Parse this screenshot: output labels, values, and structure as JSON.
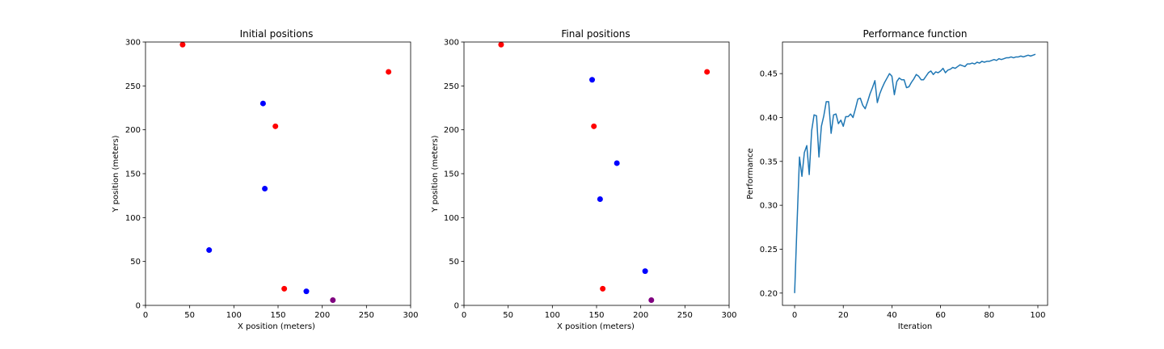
{
  "chart_data": [
    {
      "type": "scatter",
      "title": "Initial positions",
      "xlabel": "X position (meters)",
      "ylabel": "Y position (meters)",
      "xlim": [
        0,
        300
      ],
      "ylim": [
        0,
        300
      ],
      "xticks": [
        0,
        50,
        100,
        150,
        200,
        250,
        300
      ],
      "yticks": [
        0,
        50,
        100,
        150,
        200,
        250,
        300
      ],
      "grid": false,
      "points": [
        {
          "x": 42,
          "y": 297,
          "color": "#ff0000"
        },
        {
          "x": 275,
          "y": 266,
          "color": "#ff0000"
        },
        {
          "x": 133,
          "y": 230,
          "color": "#0000ff"
        },
        {
          "x": 147,
          "y": 204,
          "color": "#ff0000"
        },
        {
          "x": 135,
          "y": 133,
          "color": "#0000ff"
        },
        {
          "x": 72,
          "y": 63,
          "color": "#0000ff"
        },
        {
          "x": 157,
          "y": 19,
          "color": "#ff0000"
        },
        {
          "x": 182,
          "y": 16,
          "color": "#0000ff"
        },
        {
          "x": 212,
          "y": 6,
          "color": "#800080"
        }
      ]
    },
    {
      "type": "scatter",
      "title": "Final positions",
      "xlabel": "X position (meters)",
      "ylabel": "Y position (meters)",
      "xlim": [
        0,
        300
      ],
      "ylim": [
        0,
        300
      ],
      "xticks": [
        0,
        50,
        100,
        150,
        200,
        250,
        300
      ],
      "yticks": [
        0,
        50,
        100,
        150,
        200,
        250,
        300
      ],
      "grid": false,
      "points": [
        {
          "x": 42,
          "y": 297,
          "color": "#ff0000"
        },
        {
          "x": 275,
          "y": 266,
          "color": "#ff0000"
        },
        {
          "x": 145,
          "y": 257,
          "color": "#0000ff"
        },
        {
          "x": 147,
          "y": 204,
          "color": "#ff0000"
        },
        {
          "x": 173,
          "y": 162,
          "color": "#0000ff"
        },
        {
          "x": 154,
          "y": 121,
          "color": "#0000ff"
        },
        {
          "x": 205,
          "y": 39,
          "color": "#0000ff"
        },
        {
          "x": 157,
          "y": 19,
          "color": "#ff0000"
        },
        {
          "x": 212,
          "y": 6,
          "color": "#800080"
        }
      ]
    },
    {
      "type": "line",
      "title": "Performance function",
      "xlabel": "Iteration",
      "ylabel": "Performance",
      "xlim": [
        -5,
        104
      ],
      "ylim": [
        0.186,
        0.486
      ],
      "xticks": [
        0,
        20,
        40,
        60,
        80,
        100
      ],
      "yticks": [
        0.2,
        0.25,
        0.3,
        0.35,
        0.4,
        0.45
      ],
      "ytick_labels": [
        "0.20",
        "0.25",
        "0.30",
        "0.35",
        "0.40",
        "0.45"
      ],
      "grid": false,
      "color": "#1f77b4",
      "x": [
        0,
        1,
        2,
        3,
        4,
        5,
        6,
        7,
        8,
        9,
        10,
        11,
        12,
        13,
        14,
        15,
        16,
        17,
        18,
        19,
        20,
        21,
        22,
        23,
        24,
        25,
        26,
        27,
        28,
        29,
        30,
        31,
        32,
        33,
        34,
        35,
        36,
        37,
        38,
        39,
        40,
        41,
        42,
        43,
        44,
        45,
        46,
        47,
        48,
        49,
        50,
        51,
        52,
        53,
        54,
        55,
        56,
        57,
        58,
        59,
        60,
        61,
        62,
        63,
        64,
        65,
        66,
        67,
        68,
        69,
        70,
        71,
        72,
        73,
        74,
        75,
        76,
        77,
        78,
        79,
        80,
        81,
        82,
        83,
        84,
        85,
        86,
        87,
        88,
        89,
        90,
        91,
        92,
        93,
        94,
        95,
        96,
        97,
        98,
        99
      ],
      "y": [
        0.2,
        0.28,
        0.355,
        0.333,
        0.36,
        0.368,
        0.335,
        0.385,
        0.403,
        0.402,
        0.355,
        0.39,
        0.402,
        0.418,
        0.418,
        0.382,
        0.403,
        0.404,
        0.393,
        0.397,
        0.39,
        0.401,
        0.401,
        0.404,
        0.4,
        0.41,
        0.421,
        0.422,
        0.414,
        0.41,
        0.418,
        0.427,
        0.434,
        0.442,
        0.417,
        0.427,
        0.434,
        0.44,
        0.445,
        0.45,
        0.447,
        0.426,
        0.441,
        0.445,
        0.443,
        0.443,
        0.434,
        0.435,
        0.44,
        0.444,
        0.449,
        0.447,
        0.443,
        0.443,
        0.447,
        0.451,
        0.453,
        0.449,
        0.452,
        0.451,
        0.453,
        0.456,
        0.451,
        0.454,
        0.455,
        0.457,
        0.456,
        0.458,
        0.46,
        0.459,
        0.458,
        0.461,
        0.461,
        0.462,
        0.461,
        0.463,
        0.462,
        0.464,
        0.463,
        0.464,
        0.464,
        0.465,
        0.466,
        0.465,
        0.467,
        0.466,
        0.467,
        0.468,
        0.468,
        0.469,
        0.468,
        0.469,
        0.469,
        0.47,
        0.469,
        0.47,
        0.471,
        0.47,
        0.471,
        0.472
      ]
    }
  ]
}
